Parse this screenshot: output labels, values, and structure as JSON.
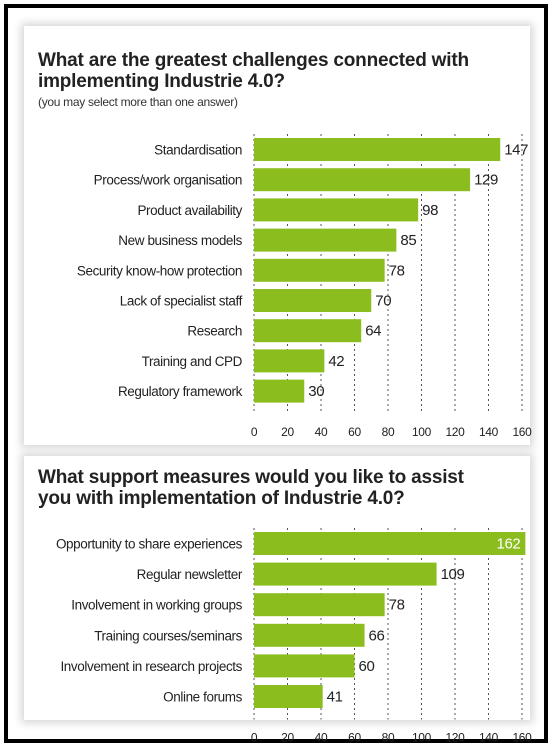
{
  "chart_data": [
    {
      "type": "bar",
      "orientation": "horizontal",
      "title": "What are the greatest challenges connected with implementing Industrie 4.0?",
      "title_lines": [
        "What are the greatest challenges connected with",
        "implementing Industrie 4.0?"
      ],
      "subtitle": "(you may select more than one answer)",
      "categories": [
        "Standardisation",
        "Process/work organisation",
        "Product availability",
        "New business models",
        "Security know-how protection",
        "Lack of specialist staff",
        "Research",
        "Training and CPD",
        "Regulatory framework"
      ],
      "values": [
        147,
        129,
        98,
        85,
        78,
        70,
        64,
        42,
        30
      ],
      "xlim": [
        0,
        160
      ],
      "ticks": [
        0,
        20,
        40,
        60,
        80,
        100,
        120,
        140,
        160
      ],
      "grid": true,
      "bar_color": "#8cbd1f"
    },
    {
      "type": "bar",
      "orientation": "horizontal",
      "title": "What support measures would you like to assist you with implementation of Industrie 4.0?",
      "title_lines": [
        "What support measures would you like to assist",
        "you with implementation of Industrie 4.0?"
      ],
      "categories": [
        "Opportunity to share experiences",
        "Regular newsletter",
        "Involvement in working groups",
        "Training courses/seminars",
        "Involvement in research projects",
        "Online forums"
      ],
      "values": [
        162,
        109,
        78,
        66,
        60,
        41
      ],
      "xlim": [
        0,
        160
      ],
      "ticks": [
        0,
        20,
        40,
        60,
        80,
        100,
        120,
        140,
        160
      ],
      "grid": true,
      "bar_color": "#8cbd1f"
    }
  ]
}
